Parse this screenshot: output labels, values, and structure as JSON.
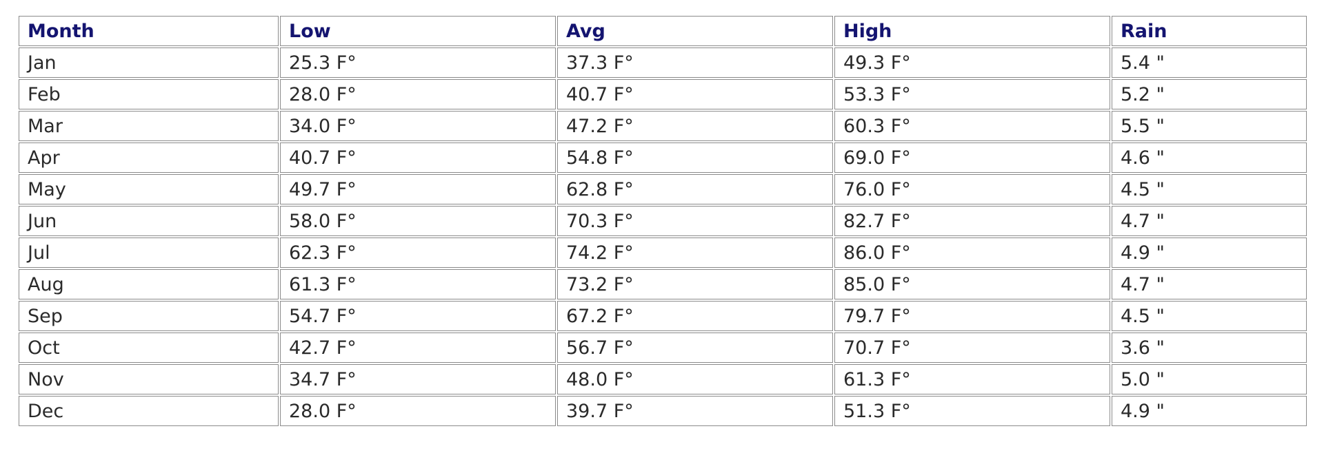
{
  "table": {
    "header": [
      "Month",
      "Low",
      "Avg",
      "High",
      "Rain"
    ],
    "rows": [
      [
        "Jan",
        "25.3 F°",
        "37.3 F°",
        "49.3 F°",
        "5.4 \""
      ],
      [
        "Feb",
        "28.0 F°",
        "40.7 F°",
        "53.3 F°",
        "5.2 \""
      ],
      [
        "Mar",
        "34.0 F°",
        "47.2 F°",
        "60.3 F°",
        "5.5 \""
      ],
      [
        "Apr",
        "40.7 F°",
        "54.8 F°",
        "69.0 F°",
        "4.6 \""
      ],
      [
        "May",
        "49.7 F°",
        "62.8 F°",
        "76.0 F°",
        "4.5 \""
      ],
      [
        "Jun",
        "58.0 F°",
        "70.3 F°",
        "82.7 F°",
        "4.7 \""
      ],
      [
        "Jul",
        "62.3 F°",
        "74.2 F°",
        "86.0 F°",
        "4.9 \""
      ],
      [
        "Aug",
        "61.3 F°",
        "73.2 F°",
        "85.0 F°",
        "4.7 \""
      ],
      [
        "Sep",
        "54.7 F°",
        "67.2 F°",
        "79.7 F°",
        "4.5 \""
      ],
      [
        "Oct",
        "42.7 F°",
        "56.7 F°",
        "70.7 F°",
        "3.6 \""
      ],
      [
        "Nov",
        "34.7 F°",
        "48.0 F°",
        "61.3 F°",
        "5.0 \""
      ],
      [
        "Dec",
        "28.0 F°",
        "39.7 F°",
        "51.3 F°",
        "4.9 \""
      ]
    ]
  }
}
